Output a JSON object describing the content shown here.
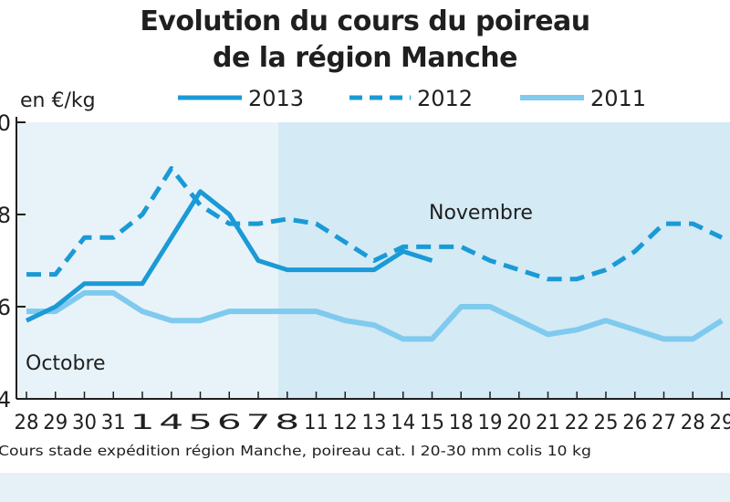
{
  "chart_data": {
    "type": "line",
    "title": [
      "Evolution du cours du poireau",
      "de la région Manche"
    ],
    "ylabel": "en €/kg",
    "y_tick_labels": [
      "0",
      "8",
      "6",
      "4"
    ],
    "ylim": [
      0.4,
      1.0
    ],
    "x_tick_labels": [
      "28",
      "29",
      "30",
      "31",
      "1",
      "4",
      "5",
      "6",
      "7",
      "8",
      "11",
      "12",
      "13",
      "14",
      "15",
      "18",
      "19",
      "20",
      "21",
      "22",
      "25",
      "26",
      "27",
      "28",
      "29"
    ],
    "period_labels": [
      "Octobre",
      "Novembre"
    ],
    "legend_position": "top",
    "grid": false,
    "series": [
      {
        "name": "2013",
        "style": "solid-thick",
        "color": "#1a9ad6",
        "values": [
          0.57,
          0.6,
          0.65,
          0.65,
          0.65,
          0.75,
          0.85,
          0.8,
          0.7,
          0.68,
          0.68,
          0.68,
          0.68,
          0.72,
          0.7,
          null,
          null,
          null,
          null,
          null,
          null,
          null,
          null,
          null,
          null
        ]
      },
      {
        "name": "2012",
        "style": "dashed",
        "color": "#1a9ad6",
        "values": [
          0.67,
          0.67,
          0.75,
          0.75,
          0.8,
          0.9,
          0.82,
          0.78,
          0.78,
          0.79,
          0.78,
          0.74,
          0.7,
          0.73,
          0.73,
          0.73,
          0.7,
          0.68,
          0.66,
          0.66,
          0.68,
          0.72,
          0.78,
          0.78,
          0.75
        ]
      },
      {
        "name": "2011",
        "style": "solid-light",
        "color": "#7fcaee",
        "values": [
          0.59,
          0.59,
          0.63,
          0.63,
          0.59,
          0.57,
          0.57,
          0.59,
          0.59,
          0.59,
          0.59,
          0.57,
          0.56,
          0.53,
          0.53,
          0.6,
          0.6,
          0.57,
          0.54,
          0.55,
          0.57,
          0.55,
          0.53,
          0.53,
          0.57
        ]
      }
    ],
    "source_note": "Cours stade expédition région Manche, poireau cat. I 20-30 mm colis 10 kg"
  },
  "colors": {
    "panel_light": "#e8f3f9",
    "panel_dark": "#d4eaf5",
    "line_dark": "#1a9ad6",
    "line_light": "#7fcaee",
    "axis": "#1f1f1f"
  }
}
